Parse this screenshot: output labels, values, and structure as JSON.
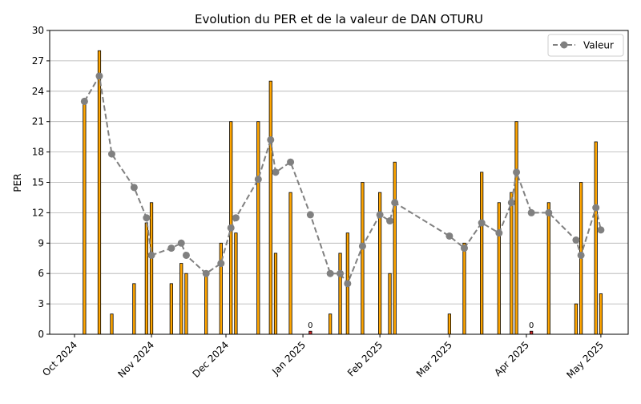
{
  "chart_data": {
    "type": "bar",
    "title": "Evolution du PER et de la valeur de DAN OTURU",
    "xlabel": "",
    "ylabel": "PER",
    "ylim": [
      0,
      30
    ],
    "xlim": [
      "2024-09-21",
      "2025-05-12"
    ],
    "yticks": [
      0,
      3,
      6,
      9,
      12,
      15,
      18,
      21,
      24,
      27,
      30
    ],
    "xticks": [
      {
        "date": "2024-10-01",
        "label": "Oct 2024"
      },
      {
        "date": "2024-11-01",
        "label": "Nov 2024"
      },
      {
        "date": "2024-12-01",
        "label": "Dec 2024"
      },
      {
        "date": "2025-01-01",
        "label": "Jan 2025"
      },
      {
        "date": "2025-02-01",
        "label": "Feb 2025"
      },
      {
        "date": "2025-03-01",
        "label": "Mar 2025"
      },
      {
        "date": "2025-04-01",
        "label": "Apr 2025"
      },
      {
        "date": "2025-05-01",
        "label": "May 2025"
      }
    ],
    "grid": "horizontal",
    "legend_position": "top-right",
    "colors": {
      "bar": "#ffa500",
      "bar_zero": "#d62728",
      "bar_edge": "#000000",
      "line": "#808080"
    },
    "bars": [
      {
        "date": "2024-10-05",
        "value": 23
      },
      {
        "date": "2024-10-11",
        "value": 28
      },
      {
        "date": "2024-10-16",
        "value": 2
      },
      {
        "date": "2024-10-25",
        "value": 5
      },
      {
        "date": "2024-10-30",
        "value": 11
      },
      {
        "date": "2024-11-01",
        "value": 13
      },
      {
        "date": "2024-11-09",
        "value": 5
      },
      {
        "date": "2024-11-13",
        "value": 7
      },
      {
        "date": "2024-11-15",
        "value": 6
      },
      {
        "date": "2024-11-23",
        "value": 6
      },
      {
        "date": "2024-11-29",
        "value": 9
      },
      {
        "date": "2024-12-03",
        "value": 21
      },
      {
        "date": "2024-12-05",
        "value": 10
      },
      {
        "date": "2024-12-14",
        "value": 21
      },
      {
        "date": "2024-12-19",
        "value": 25
      },
      {
        "date": "2024-12-21",
        "value": 8
      },
      {
        "date": "2024-12-27",
        "value": 14
      },
      {
        "date": "2025-01-04",
        "value": 0.3,
        "label": "0"
      },
      {
        "date": "2025-01-12",
        "value": 2
      },
      {
        "date": "2025-01-16",
        "value": 8
      },
      {
        "date": "2025-01-19",
        "value": 10
      },
      {
        "date": "2025-01-25",
        "value": 15
      },
      {
        "date": "2025-02-01",
        "value": 14
      },
      {
        "date": "2025-02-05",
        "value": 6
      },
      {
        "date": "2025-02-07",
        "value": 17
      },
      {
        "date": "2025-03-01",
        "value": 2
      },
      {
        "date": "2025-03-07",
        "value": 9
      },
      {
        "date": "2025-03-14",
        "value": 16
      },
      {
        "date": "2025-03-21",
        "value": 13
      },
      {
        "date": "2025-03-26",
        "value": 14
      },
      {
        "date": "2025-03-28",
        "value": 21
      },
      {
        "date": "2025-04-03",
        "value": 0.3,
        "label": "0"
      },
      {
        "date": "2025-04-10",
        "value": 13
      },
      {
        "date": "2025-04-21",
        "value": 3
      },
      {
        "date": "2025-04-23",
        "value": 15
      },
      {
        "date": "2025-04-29",
        "value": 19
      },
      {
        "date": "2025-05-01",
        "value": 4
      }
    ],
    "series": [
      {
        "name": "Valeur",
        "type": "line",
        "points": [
          {
            "date": "2024-10-05",
            "value": 23
          },
          {
            "date": "2024-10-11",
            "value": 25.5
          },
          {
            "date": "2024-10-16",
            "value": 17.8
          },
          {
            "date": "2024-10-25",
            "value": 14.5
          },
          {
            "date": "2024-10-30",
            "value": 11.5
          },
          {
            "date": "2024-11-01",
            "value": 7.8
          },
          {
            "date": "2024-11-09",
            "value": 8.5
          },
          {
            "date": "2024-11-13",
            "value": 9
          },
          {
            "date": "2024-11-15",
            "value": 7.8
          },
          {
            "date": "2024-11-23",
            "value": 6
          },
          {
            "date": "2024-11-29",
            "value": 7
          },
          {
            "date": "2024-12-03",
            "value": 10.5
          },
          {
            "date": "2024-12-05",
            "value": 11.5
          },
          {
            "date": "2024-12-14",
            "value": 15.3
          },
          {
            "date": "2024-12-19",
            "value": 19.2
          },
          {
            "date": "2024-12-21",
            "value": 16
          },
          {
            "date": "2024-12-27",
            "value": 17
          },
          {
            "date": "2025-01-04",
            "value": 11.8
          },
          {
            "date": "2025-01-12",
            "value": 6
          },
          {
            "date": "2025-01-16",
            "value": 6
          },
          {
            "date": "2025-01-19",
            "value": 5
          },
          {
            "date": "2025-01-25",
            "value": 8.7
          },
          {
            "date": "2025-02-01",
            "value": 11.8
          },
          {
            "date": "2025-02-05",
            "value": 11.2
          },
          {
            "date": "2025-02-07",
            "value": 13
          },
          {
            "date": "2025-03-01",
            "value": 9.7
          },
          {
            "date": "2025-03-07",
            "value": 8.5
          },
          {
            "date": "2025-03-14",
            "value": 11
          },
          {
            "date": "2025-03-21",
            "value": 10
          },
          {
            "date": "2025-03-26",
            "value": 13
          },
          {
            "date": "2025-03-28",
            "value": 16
          },
          {
            "date": "2025-04-03",
            "value": 12
          },
          {
            "date": "2025-04-10",
            "value": 12
          },
          {
            "date": "2025-04-21",
            "value": 9.3
          },
          {
            "date": "2025-04-23",
            "value": 7.8
          },
          {
            "date": "2025-04-29",
            "value": 12.5
          },
          {
            "date": "2025-05-01",
            "value": 10.3
          }
        ]
      }
    ]
  }
}
